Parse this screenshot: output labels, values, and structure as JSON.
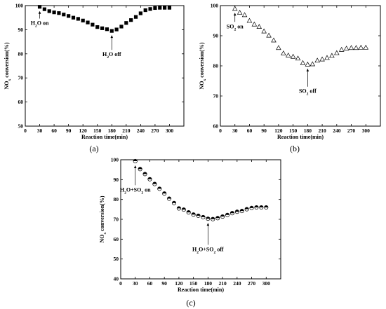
{
  "chart_data": [
    {
      "type": "scatter",
      "panel_label": "(a)",
      "marker": "filled-square",
      "xlabel": "Reaction time(min)",
      "ylabel": "NO_x conversion(%)",
      "xlim": [
        0,
        330
      ],
      "ylim": [
        50,
        100
      ],
      "xticks": [
        0,
        30,
        60,
        90,
        120,
        150,
        180,
        210,
        240,
        270,
        300
      ],
      "yticks": [
        50,
        60,
        70,
        80,
        90,
        100
      ],
      "x": [
        30,
        40,
        50,
        60,
        70,
        80,
        90,
        100,
        110,
        120,
        130,
        140,
        150,
        160,
        170,
        180,
        190,
        200,
        210,
        220,
        230,
        240,
        250,
        260,
        270,
        280,
        290,
        300
      ],
      "y": [
        99.5,
        98.5,
        97.7,
        97.2,
        96.9,
        96.3,
        95.7,
        95.0,
        94.5,
        93.8,
        93.0,
        92.1,
        91.1,
        90.6,
        90.2,
        89.5,
        90.1,
        91.3,
        92.8,
        94.0,
        95.3,
        96.8,
        98.1,
        98.6,
        99.0,
        99.1,
        99.1,
        99.1
      ],
      "annotations": [
        {
          "text": "H_2O on",
          "x": 30,
          "y": 92
        },
        {
          "text": "H_2O off",
          "x": 180,
          "y": 79
        }
      ]
    },
    {
      "type": "scatter",
      "panel_label": "(b)",
      "marker": "hollow-triangle",
      "xlabel": "Reaction time(min)",
      "ylabel": "NO_x conversion(%)",
      "xlim": [
        0,
        330
      ],
      "ylim": [
        60,
        100
      ],
      "xticks": [
        0,
        30,
        60,
        90,
        120,
        150,
        180,
        210,
        240,
        270,
        300
      ],
      "yticks": [
        60,
        70,
        80,
        90,
        100
      ],
      "x": [
        30,
        40,
        50,
        60,
        70,
        80,
        90,
        100,
        110,
        120,
        130,
        140,
        150,
        160,
        170,
        180,
        190,
        200,
        210,
        220,
        230,
        240,
        250,
        260,
        270,
        280,
        290,
        300
      ],
      "y": [
        99.0,
        97.7,
        96.9,
        95.0,
        93.8,
        93.0,
        91.5,
        90.1,
        88.5,
        86.0,
        84.2,
        83.5,
        83.1,
        82.5,
        81.0,
        80.5,
        80.6,
        81.8,
        82.2,
        82.7,
        83.4,
        84.3,
        85.4,
        85.8,
        86.0,
        86.0,
        86.1,
        86.1
      ],
      "annotations": [
        {
          "text": "SO_2 on",
          "x": 30,
          "y": 92.5
        },
        {
          "text": "SO_2 off",
          "x": 180,
          "y": 71
        }
      ]
    },
    {
      "type": "scatter",
      "panel_label": "(c)",
      "marker": "half-filled-circle",
      "xlabel": "Reaction time(min)",
      "ylabel": "NO_x conversion(%)",
      "xlim": [
        0,
        330
      ],
      "ylim": [
        40,
        100
      ],
      "xticks": [
        0,
        30,
        60,
        90,
        120,
        150,
        180,
        210,
        240,
        270,
        300
      ],
      "yticks": [
        40,
        50,
        60,
        70,
        80,
        90,
        100
      ],
      "x": [
        30,
        40,
        50,
        60,
        70,
        80,
        90,
        100,
        110,
        120,
        130,
        140,
        150,
        160,
        170,
        180,
        190,
        200,
        210,
        220,
        230,
        240,
        250,
        260,
        270,
        280,
        290,
        300
      ],
      "y": [
        99.3,
        95.3,
        92.8,
        90.2,
        87.8,
        85.4,
        83.0,
        80.4,
        78.2,
        75.5,
        74.9,
        73.5,
        72.4,
        71.8,
        71.1,
        70.3,
        70.1,
        70.6,
        71.4,
        72.2,
        73.1,
        73.8,
        74.2,
        75.1,
        75.7,
        76.0,
        76.0,
        76.0
      ],
      "annotations": [
        {
          "text": "H_2O+SO_2 on",
          "x": 30,
          "y": 84
        },
        {
          "text": "H_2O+SO_2 off",
          "x": 180,
          "y": 54
        }
      ]
    }
  ]
}
